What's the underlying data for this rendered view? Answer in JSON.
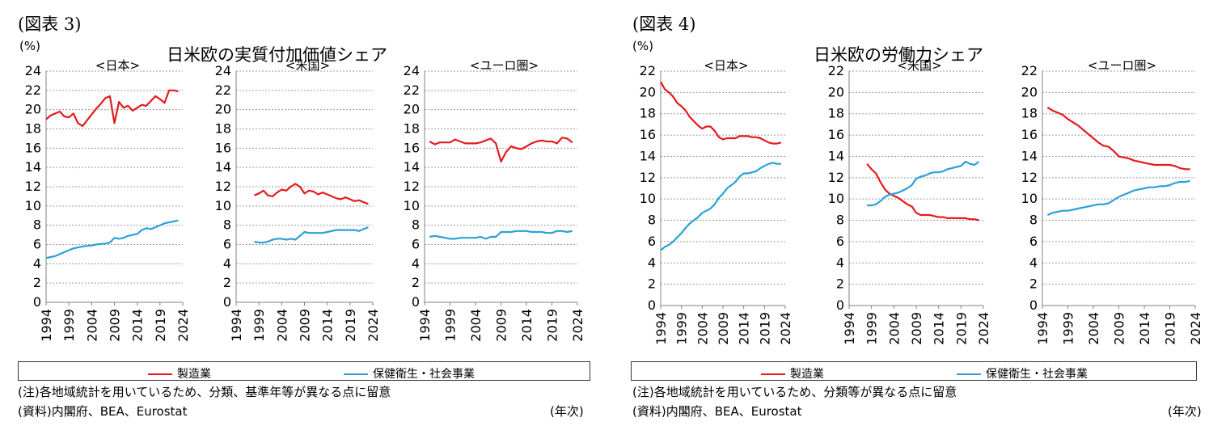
{
  "colors": {
    "series1": "#e41a1c",
    "series2": "#2ba0d8",
    "grid": "#9a9a9a",
    "axis": "#808080"
  },
  "chart_data": [
    {
      "figure_label": "(図表 3)",
      "title": "日米欧の実質付加価値シェア",
      "ylabel": "(%)",
      "xunit": "(年次)",
      "type": "line",
      "ylim": [
        0,
        24
      ],
      "yticks": [
        "0",
        "2",
        "4",
        "6",
        "8",
        "10",
        "12",
        "14",
        "16",
        "18",
        "20",
        "22",
        "24"
      ],
      "xlim": [
        1994,
        2024
      ],
      "xticks": [
        "1994",
        "1999",
        "2004",
        "2009",
        "2014",
        "2019",
        "2024"
      ],
      "legend": [
        "製造業",
        "保健衛生・社会事業"
      ],
      "notes": [
        "(注)各地域統計を用いているため、分類、基準年等が異なる点に留意",
        "(資料)内閣府、BEA、Eurostat"
      ],
      "panels": [
        {
          "label": "<日本>",
          "series": [
            {
              "name": "製造業",
              "x": [
                1994,
                1995,
                1996,
                1997,
                1998,
                1999,
                2000,
                2001,
                2002,
                2003,
                2004,
                2005,
                2006,
                2007,
                2008,
                2009,
                2010,
                2011,
                2012,
                2013,
                2014,
                2015,
                2016,
                2017,
                2018,
                2019,
                2020,
                2021,
                2022,
                2023
              ],
              "values": [
                19.0,
                19.4,
                19.6,
                19.8,
                19.3,
                19.2,
                19.6,
                18.6,
                18.3,
                18.9,
                19.5,
                20.1,
                20.6,
                21.2,
                21.4,
                18.6,
                20.8,
                20.2,
                20.4,
                19.9,
                20.2,
                20.5,
                20.4,
                20.9,
                21.4,
                21.1,
                20.7,
                22.0,
                22.0,
                21.9
              ]
            },
            {
              "name": "保健衛生・社会事業",
              "x": [
                1994,
                1995,
                1996,
                1997,
                1998,
                1999,
                2000,
                2001,
                2002,
                2003,
                2004,
                2005,
                2006,
                2007,
                2008,
                2009,
                2010,
                2011,
                2012,
                2013,
                2014,
                2015,
                2016,
                2017,
                2018,
                2019,
                2020,
                2021,
                2022,
                2023
              ],
              "values": [
                4.6,
                4.7,
                4.8,
                5.0,
                5.2,
                5.4,
                5.6,
                5.7,
                5.8,
                5.85,
                5.9,
                6.0,
                6.05,
                6.1,
                6.2,
                6.7,
                6.6,
                6.7,
                6.9,
                7.0,
                7.1,
                7.5,
                7.7,
                7.6,
                7.8,
                8.0,
                8.2,
                8.3,
                8.4,
                8.5
              ]
            }
          ]
        },
        {
          "label": "<米国>",
          "series": [
            {
              "name": "製造業",
              "x": [
                1998,
                1999,
                2000,
                2001,
                2002,
                2003,
                2004,
                2005,
                2006,
                2007,
                2008,
                2009,
                2010,
                2011,
                2012,
                2013,
                2014,
                2015,
                2016,
                2017,
                2018,
                2019,
                2020,
                2021,
                2022,
                2023
              ],
              "values": [
                11.1,
                11.3,
                11.6,
                11.1,
                11.0,
                11.4,
                11.7,
                11.6,
                12.0,
                12.3,
                12.0,
                11.3,
                11.6,
                11.5,
                11.2,
                11.4,
                11.2,
                11.0,
                10.8,
                10.7,
                10.9,
                10.7,
                10.5,
                10.6,
                10.4,
                10.2
              ]
            },
            {
              "name": "保健衛生・社会事業",
              "x": [
                1998,
                1999,
                2000,
                2001,
                2002,
                2003,
                2004,
                2005,
                2006,
                2007,
                2008,
                2009,
                2010,
                2011,
                2012,
                2013,
                2014,
                2015,
                2016,
                2017,
                2018,
                2019,
                2020,
                2021,
                2022,
                2023
              ],
              "values": [
                6.3,
                6.2,
                6.2,
                6.3,
                6.5,
                6.6,
                6.6,
                6.5,
                6.6,
                6.5,
                6.9,
                7.3,
                7.2,
                7.2,
                7.2,
                7.2,
                7.3,
                7.4,
                7.5,
                7.5,
                7.5,
                7.5,
                7.5,
                7.4,
                7.6,
                7.8
              ]
            }
          ]
        },
        {
          "label": "<ユーロ圏>",
          "series": [
            {
              "name": "製造業",
              "x": [
                1995,
                1996,
                1997,
                1998,
                1999,
                2000,
                2001,
                2002,
                2003,
                2004,
                2005,
                2006,
                2007,
                2008,
                2009,
                2010,
                2011,
                2012,
                2013,
                2014,
                2015,
                2016,
                2017,
                2018,
                2019,
                2020,
                2021,
                2022,
                2023
              ],
              "values": [
                16.7,
                16.4,
                16.6,
                16.6,
                16.6,
                16.9,
                16.7,
                16.5,
                16.5,
                16.5,
                16.6,
                16.8,
                17.0,
                16.5,
                14.6,
                15.6,
                16.2,
                16.0,
                15.9,
                16.2,
                16.5,
                16.7,
                16.8,
                16.7,
                16.7,
                16.5,
                17.1,
                17.0,
                16.6
              ]
            },
            {
              "name": "保健衛生・社会事業",
              "x": [
                1995,
                1996,
                1997,
                1998,
                1999,
                2000,
                2001,
                2002,
                2003,
                2004,
                2005,
                2006,
                2007,
                2008,
                2009,
                2010,
                2011,
                2012,
                2013,
                2014,
                2015,
                2016,
                2017,
                2018,
                2019,
                2020,
                2021,
                2022,
                2023
              ],
              "values": [
                6.8,
                6.9,
                6.8,
                6.7,
                6.6,
                6.6,
                6.7,
                6.7,
                6.7,
                6.7,
                6.8,
                6.6,
                6.8,
                6.8,
                7.3,
                7.3,
                7.3,
                7.4,
                7.4,
                7.4,
                7.3,
                7.3,
                7.3,
                7.2,
                7.2,
                7.4,
                7.4,
                7.3,
                7.4
              ]
            }
          ]
        }
      ]
    },
    {
      "figure_label": "(図表 4)",
      "title": "日米欧の労働力シェア",
      "ylabel": "(%)",
      "xunit": "(年次)",
      "type": "line",
      "ylim": [
        0,
        22
      ],
      "yticks": [
        "0",
        "2",
        "4",
        "6",
        "8",
        "10",
        "12",
        "14",
        "16",
        "18",
        "20",
        "22"
      ],
      "xlim": [
        1994,
        2024
      ],
      "xticks": [
        "1994",
        "1999",
        "2004",
        "2009",
        "2014",
        "2019",
        "2024"
      ],
      "legend": [
        "製造業",
        "保健衛生・社会事業"
      ],
      "notes": [
        "(注)各地域統計を用いているため、分類等が異なる点に留意",
        "(資料)内閣府、BEA、Eurostat"
      ],
      "panels": [
        {
          "label": "<日本>",
          "series": [
            {
              "name": "製造業",
              "x": [
                1994,
                1995,
                1996,
                1997,
                1998,
                1999,
                2000,
                2001,
                2002,
                2003,
                2004,
                2005,
                2006,
                2007,
                2008,
                2009,
                2010,
                2011,
                2012,
                2013,
                2014,
                2015,
                2016,
                2017,
                2018,
                2019,
                2020,
                2021,
                2022,
                2023
              ],
              "values": [
                21.0,
                20.3,
                20.0,
                19.6,
                19.0,
                18.7,
                18.3,
                17.7,
                17.3,
                16.9,
                16.6,
                16.8,
                16.8,
                16.4,
                15.8,
                15.6,
                15.7,
                15.7,
                15.7,
                15.9,
                15.9,
                15.9,
                15.8,
                15.8,
                15.7,
                15.5,
                15.3,
                15.2,
                15.2,
                15.3
              ]
            },
            {
              "name": "保健衛生・社会事業",
              "x": [
                1994,
                1995,
                1996,
                1997,
                1998,
                1999,
                2000,
                2001,
                2002,
                2003,
                2004,
                2005,
                2006,
                2007,
                2008,
                2009,
                2010,
                2011,
                2012,
                2013,
                2014,
                2015,
                2016,
                2017,
                2018,
                2019,
                2020,
                2021,
                2022,
                2023
              ],
              "values": [
                5.2,
                5.5,
                5.7,
                6.0,
                6.4,
                6.8,
                7.3,
                7.7,
                8.0,
                8.3,
                8.7,
                8.9,
                9.1,
                9.5,
                10.1,
                10.5,
                11.0,
                11.3,
                11.6,
                12.1,
                12.4,
                12.4,
                12.5,
                12.6,
                12.9,
                13.1,
                13.3,
                13.4,
                13.3,
                13.3
              ]
            }
          ]
        },
        {
          "label": "<米国>",
          "series": [
            {
              "name": "製造業",
              "x": [
                1998,
                1999,
                2000,
                2001,
                2002,
                2003,
                2004,
                2005,
                2006,
                2007,
                2008,
                2009,
                2010,
                2011,
                2012,
                2013,
                2014,
                2015,
                2016,
                2017,
                2018,
                2019,
                2020,
                2021,
                2022,
                2023
              ],
              "values": [
                13.3,
                12.8,
                12.4,
                11.6,
                10.9,
                10.5,
                10.3,
                10.1,
                9.8,
                9.5,
                9.3,
                8.7,
                8.5,
                8.5,
                8.5,
                8.4,
                8.3,
                8.3,
                8.2,
                8.2,
                8.2,
                8.2,
                8.2,
                8.1,
                8.1,
                8.0
              ]
            },
            {
              "name": "保健衛生・社会事業",
              "x": [
                1998,
                1999,
                2000,
                2001,
                2002,
                2003,
                2004,
                2005,
                2006,
                2007,
                2008,
                2009,
                2010,
                2011,
                2012,
                2013,
                2014,
                2015,
                2016,
                2017,
                2018,
                2019,
                2020,
                2021,
                2022,
                2023
              ],
              "values": [
                9.4,
                9.4,
                9.5,
                9.8,
                10.2,
                10.4,
                10.5,
                10.6,
                10.8,
                11.0,
                11.3,
                11.9,
                12.1,
                12.2,
                12.4,
                12.5,
                12.5,
                12.6,
                12.8,
                12.9,
                13.0,
                13.1,
                13.5,
                13.3,
                13.2,
                13.5
              ]
            }
          ]
        },
        {
          "label": "<ユーロ圏>",
          "series": [
            {
              "name": "製造業",
              "x": [
                1995,
                1996,
                1997,
                1998,
                1999,
                2000,
                2001,
                2002,
                2003,
                2004,
                2005,
                2006,
                2007,
                2008,
                2009,
                2010,
                2011,
                2012,
                2013,
                2014,
                2015,
                2016,
                2017,
                2018,
                2019,
                2020,
                2021,
                2022,
                2023
              ],
              "values": [
                18.6,
                18.3,
                18.1,
                17.9,
                17.5,
                17.2,
                16.9,
                16.5,
                16.1,
                15.7,
                15.3,
                15.0,
                14.9,
                14.5,
                14.0,
                13.9,
                13.8,
                13.6,
                13.5,
                13.4,
                13.3,
                13.2,
                13.2,
                13.2,
                13.2,
                13.1,
                12.9,
                12.8,
                12.8
              ]
            },
            {
              "name": "保健衛生・社会事業",
              "x": [
                1995,
                1996,
                1997,
                1998,
                1999,
                2000,
                2001,
                2002,
                2003,
                2004,
                2005,
                2006,
                2007,
                2008,
                2009,
                2010,
                2011,
                2012,
                2013,
                2014,
                2015,
                2016,
                2017,
                2018,
                2019,
                2020,
                2021,
                2022,
                2023
              ],
              "values": [
                8.5,
                8.7,
                8.8,
                8.9,
                8.9,
                9.0,
                9.1,
                9.2,
                9.3,
                9.4,
                9.5,
                9.5,
                9.6,
                9.9,
                10.2,
                10.4,
                10.6,
                10.8,
                10.9,
                11.0,
                11.1,
                11.1,
                11.2,
                11.2,
                11.3,
                11.5,
                11.6,
                11.6,
                11.7
              ]
            }
          ]
        }
      ]
    }
  ]
}
